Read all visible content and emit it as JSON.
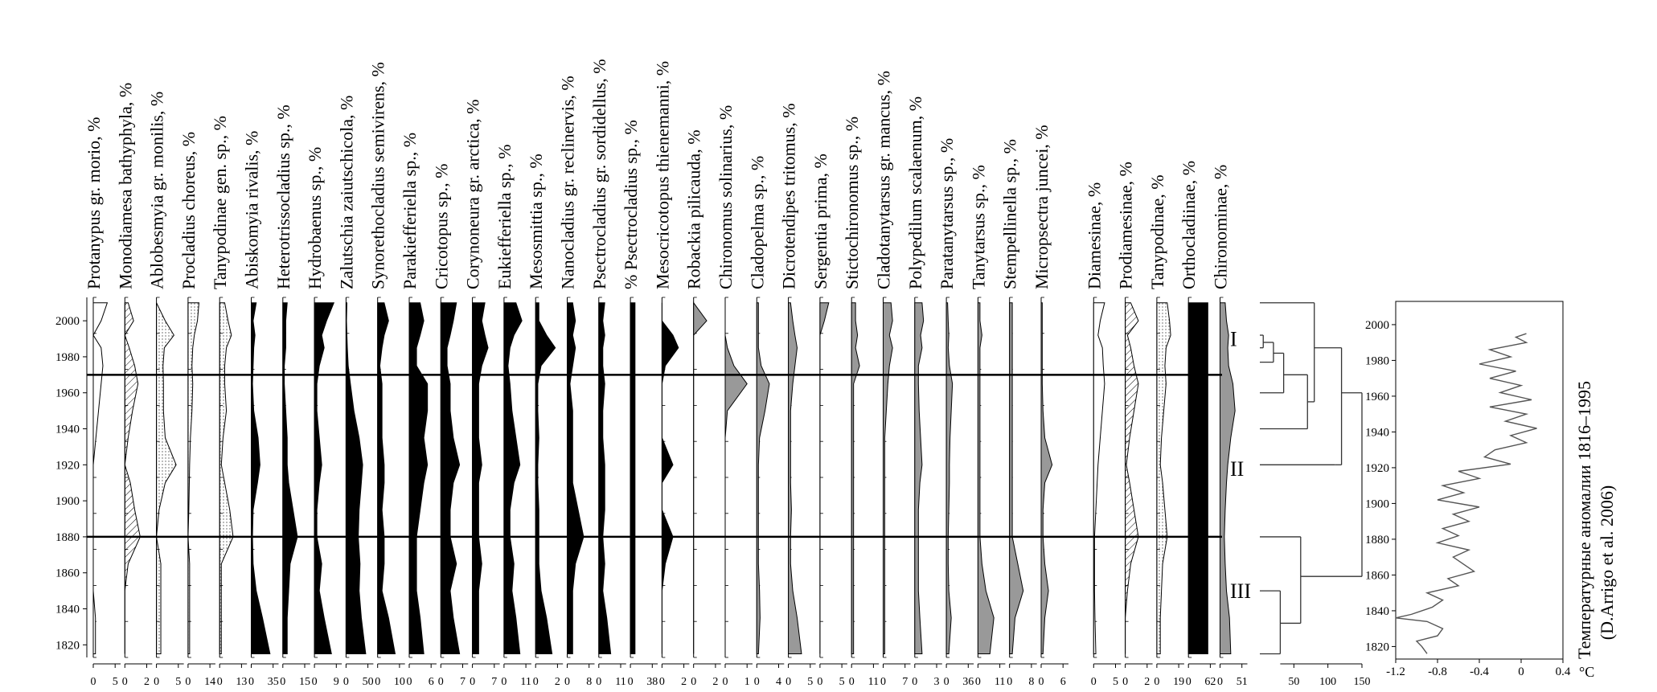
{
  "chart_data": {
    "type": "area",
    "description_y": "Years",
    "y_ticks": [
      "2000",
      "1980",
      "1960",
      "1940",
      "1920",
      "1900",
      "1880",
      "1860",
      "1840",
      "1820"
    ],
    "ylim": [
      1813,
      2013
    ],
    "zone_boundaries": [
      1970,
      1880
    ],
    "zone_labels": [
      {
        "label": "I",
        "year": 1990
      },
      {
        "label": "II",
        "year": 1918
      },
      {
        "label": "III",
        "year": 1850
      }
    ],
    "years": [
      1815,
      1835,
      1850,
      1865,
      1880,
      1895,
      1910,
      1920,
      1935,
      1950,
      1965,
      1975,
      1985,
      1992,
      2000,
      2010
    ],
    "taxa": [
      {
        "name": "Protanypus gr. morio, %",
        "ticks": [
          "0",
          "5"
        ],
        "max": 5,
        "fill": "#ffffff",
        "values": [
          0.5,
          0.5,
          0,
          0,
          0,
          0,
          0,
          0,
          0.6,
          1.2,
          1.8,
          2.2,
          1.8,
          0,
          1.8,
          3.2
        ]
      },
      {
        "name": "Monodiamesa bathyphyla, %",
        "ticks": [
          "0",
          "2"
        ],
        "max": 2,
        "fill": "hatch",
        "values": [
          0,
          0,
          0,
          0.3,
          1.4,
          0.9,
          0.5,
          0,
          0.3,
          0.7,
          1.2,
          0.9,
          0.4,
          0,
          0.8,
          0.3
        ]
      },
      {
        "name": "Ablobesmyia gr. monilis, %",
        "ticks": [
          "0",
          "5"
        ],
        "max": 5,
        "fill": "dots",
        "values": [
          1,
          1,
          1,
          1,
          0,
          0.6,
          2,
          4.5,
          2,
          1.6,
          1.6,
          1.5,
          1.8,
          4,
          2,
          0
        ]
      },
      {
        "name": "Procladius choreus, %",
        "ticks": [
          "0",
          "14"
        ],
        "max": 14,
        "fill": "dots",
        "values": [
          1,
          1,
          1,
          1,
          0,
          0.5,
          0.8,
          1,
          1.5,
          2.5,
          3,
          2.5,
          3,
          4,
          6,
          7
        ]
      },
      {
        "name": "Tanypodinae gen. sp., %",
        "ticks": [
          "0",
          "13"
        ],
        "max": 13,
        "fill": "dots",
        "values": [
          1,
          1,
          1,
          1,
          8,
          6,
          3,
          1,
          2,
          4,
          3,
          3,
          4,
          7,
          5,
          3
        ]
      },
      {
        "name": "Abiskomyia rivalis, %",
        "ticks": [
          "0",
          "35"
        ],
        "max": 35,
        "fill": "#000000",
        "values": [
          30,
          18,
          8,
          3,
          2,
          3,
          10,
          14,
          11,
          4,
          2,
          3,
          4,
          6,
          3,
          8
        ]
      },
      {
        "name": "Heterotrissocladius sp., %",
        "ticks": [
          "0",
          "15"
        ],
        "max": 15,
        "fill": "#000000",
        "values": [
          3,
          3,
          4,
          5,
          10,
          7,
          4,
          3,
          3,
          2,
          1,
          1,
          2,
          2,
          2,
          3
        ]
      },
      {
        "name": "Hydrobaenus sp., %",
        "ticks": [
          "0",
          "9"
        ],
        "max": 9,
        "fill": "#000000",
        "values": [
          7,
          4,
          2,
          3,
          1,
          1,
          2,
          3,
          2,
          1,
          1,
          2,
          4,
          3,
          5,
          8
        ]
      },
      {
        "name": "Zalutschia zaiutschicola, %",
        "ticks": [
          "0",
          "50"
        ],
        "max": 50,
        "fill": "#000000",
        "values": [
          45,
          35,
          30,
          32,
          28,
          30,
          35,
          38,
          30,
          18,
          10,
          5,
          3,
          2,
          1,
          2
        ]
      },
      {
        "name": "Synorethocladius semivirens, %",
        "ticks": [
          "0",
          "10"
        ],
        "max": 10,
        "fill": "#000000",
        "values": [
          8,
          5,
          2,
          3,
          3,
          2,
          3,
          3,
          2,
          2,
          2,
          1,
          2,
          3,
          5,
          3
        ]
      },
      {
        "name": "Parakiefferiella sp., %",
        "ticks": [
          "0",
          "6"
        ],
        "max": 6,
        "fill": "#000000",
        "values": [
          4,
          3,
          2,
          2,
          2,
          3,
          4,
          5,
          4,
          5,
          5,
          2,
          2,
          3,
          4,
          3
        ]
      },
      {
        "name": "Cricotopus sp., %",
        "ticks": [
          "0",
          "7"
        ],
        "max": 7,
        "fill": "#000000",
        "values": [
          6,
          4,
          3,
          5,
          3,
          3,
          4,
          6,
          4,
          3,
          3,
          2,
          2,
          3,
          4,
          5
        ]
      },
      {
        "name": "Corynoneura gr. arctica, %",
        "ticks": [
          "0",
          "7"
        ],
        "max": 7,
        "fill": "#000000",
        "values": [
          2,
          2,
          2,
          3,
          2,
          2,
          2,
          3,
          2,
          2,
          2,
          3,
          5,
          4,
          3,
          4
        ]
      },
      {
        "name": "Eukiefferiella sp., %",
        "ticks": [
          "0",
          "11"
        ],
        "max": 11,
        "fill": "#000000",
        "values": [
          8,
          6,
          4,
          5,
          3,
          3,
          5,
          8,
          6,
          4,
          3,
          2,
          3,
          5,
          9,
          6
        ]
      },
      {
        "name": "Mesosmittia sp., %",
        "ticks": [
          "0",
          "2"
        ],
        "max": 2,
        "fill": "#000000",
        "values": [
          1.5,
          1,
          0.5,
          0.3,
          0.3,
          0.3,
          0.2,
          0.2,
          0.3,
          0.2,
          0.2,
          0.5,
          1.8,
          1,
          0.3,
          0.3
        ]
      },
      {
        "name": "Nanocladius gr. reclinervis, %",
        "ticks": [
          "0",
          "8"
        ],
        "max": 8,
        "fill": "#000000",
        "values": [
          2,
          2,
          2,
          3,
          6,
          4,
          2,
          2,
          2,
          2,
          1,
          2,
          3,
          2,
          3,
          2
        ]
      },
      {
        "name": "Psectrocladius gr. sordidellus, %",
        "ticks": [
          "0",
          "11"
        ],
        "max": 11,
        "fill": "#000000",
        "values": [
          6,
          4,
          2,
          3,
          2,
          3,
          3,
          3,
          2,
          2,
          3,
          2,
          2,
          3,
          2,
          3
        ]
      },
      {
        "name": "% Psectrocladius sp., %",
        "ticks": [
          "0",
          "38"
        ],
        "max": 38,
        "fill": "#000000",
        "values": [
          8,
          8,
          8,
          8,
          8,
          8,
          8,
          8,
          8,
          8,
          8,
          8,
          8,
          8,
          8,
          8
        ]
      },
      {
        "name": "Mesocricotopus thienemanni, %",
        "ticks": [
          "0",
          "2"
        ],
        "max": 2,
        "fill": "#000000",
        "values": [
          0,
          0,
          0,
          0.3,
          1,
          0,
          0,
          1,
          0,
          0,
          0,
          0.3,
          1.5,
          1,
          0,
          0
        ]
      },
      {
        "name": "Robackia pilicauda, %",
        "ticks": [
          "0",
          "2"
        ],
        "max": 2,
        "fill": "#999999",
        "values": [
          0,
          0,
          0,
          0,
          0,
          0,
          0,
          0,
          0,
          0,
          0,
          0,
          0,
          0,
          1.2,
          0
        ]
      },
      {
        "name": "Chironomus solinarius, %",
        "ticks": [
          "0",
          "1"
        ],
        "max": 1,
        "fill": "#999999",
        "values": [
          0,
          0,
          0,
          0,
          0,
          0,
          0,
          0,
          0,
          0.1,
          1,
          0.4,
          0.1,
          0,
          0,
          0
        ]
      },
      {
        "name": "Cladopelma sp., %",
        "ticks": [
          "0",
          "4"
        ],
        "max": 4,
        "fill": "#999999",
        "values": [
          0.3,
          0.6,
          0.5,
          0.3,
          0.3,
          0.3,
          0.3,
          0.3,
          0.5,
          1.5,
          2.3,
          0.8,
          0.3,
          0.3,
          0.3,
          0.3
        ]
      },
      {
        "name": "Dicrotendipes tritomus, %",
        "ticks": [
          "0",
          "5"
        ],
        "max": 5,
        "fill": "#999999",
        "values": [
          3,
          2,
          1,
          0.5,
          0.5,
          0.7,
          0.5,
          0.5,
          0.5,
          0.5,
          1,
          1.5,
          2,
          1.5,
          1,
          0.5
        ]
      },
      {
        "name": "Sergentia prima, %",
        "ticks": [
          "0",
          "5"
        ],
        "max": 5,
        "fill": "#999999",
        "values": [
          0,
          0,
          0,
          0,
          0,
          0,
          0,
          0,
          0,
          0,
          0,
          0,
          0,
          0,
          1,
          2
        ]
      },
      {
        "name": "Stictochironomus sp., %",
        "ticks": [
          "0",
          "11"
        ],
        "max": 11,
        "fill": "#999999",
        "values": [
          1,
          1,
          1,
          1,
          1,
          1,
          1,
          1,
          1,
          1,
          1,
          4,
          2,
          3,
          2,
          2
        ]
      },
      {
        "name": "Cladotanytarsus gr. mancus, %",
        "ticks": [
          "0",
          "7"
        ],
        "max": 7,
        "fill": "#999999",
        "values": [
          0.5,
          0.5,
          0.5,
          0.5,
          0.5,
          0.5,
          0.5,
          0.5,
          0.5,
          1,
          1.5,
          2,
          3,
          2,
          3,
          2.5
        ]
      },
      {
        "name": "Polypedilum scalaenum, %",
        "ticks": [
          "0",
          "3"
        ],
        "max": 3,
        "fill": "#999999",
        "values": [
          1,
          0.7,
          0.5,
          0.5,
          0.5,
          0.5,
          0.7,
          1,
          0.8,
          0.6,
          0.5,
          0.5,
          1,
          0.8,
          1.2,
          1
        ]
      },
      {
        "name": "Paratanytarsus sp., %",
        "ticks": [
          "0",
          "36"
        ],
        "max": 36,
        "fill": "#999999",
        "values": [
          4,
          8,
          4,
          3,
          3,
          4,
          5,
          5,
          6,
          8,
          10,
          5,
          3,
          4,
          3,
          2
        ]
      },
      {
        "name": "Tanytarsus sp., %",
        "ticks": [
          "0",
          "11"
        ],
        "max": 11,
        "fill": "#999999",
        "values": [
          6,
          8,
          4,
          2,
          1,
          1,
          1,
          1,
          1,
          1,
          1,
          1,
          1,
          2,
          1,
          1
        ]
      },
      {
        "name": "Stempellinella sp., %",
        "ticks": [
          "0",
          "8"
        ],
        "max": 8,
        "fill": "#999999",
        "values": [
          1,
          2,
          5,
          3,
          1,
          1,
          1,
          1,
          1,
          1,
          1,
          1,
          1,
          1,
          1,
          1
        ]
      },
      {
        "name": "Micropsectra juncei, %",
        "ticks": [
          "0",
          "6"
        ],
        "max": 6,
        "fill": "#999999",
        "values": [
          0.5,
          1,
          2,
          1,
          0.5,
          0.5,
          1,
          3,
          1,
          0.5,
          0.3,
          0.3,
          0.3,
          0.3,
          0.3,
          0.3
        ]
      },
      {
        "name": "Diamesinae, %",
        "ticks": [
          "0",
          "5"
        ],
        "max": 5,
        "fill": "#ffffff",
        "values": [
          0.5,
          0.3,
          0.2,
          0.2,
          0.2,
          0.5,
          0.8,
          1,
          1.5,
          2,
          2.5,
          2.2,
          2,
          1,
          1.5,
          2.5
        ]
      },
      {
        "name": "Prodiamesinae, %",
        "ticks": [
          "0",
          "2"
        ],
        "max": 2,
        "fill": "hatch",
        "values": [
          0,
          0,
          0.2,
          0.5,
          1.2,
          0.8,
          0.4,
          0.1,
          0.4,
          0.8,
          1.2,
          0.8,
          0.5,
          0.2,
          1.2,
          0.5
        ]
      },
      {
        "name": "Tanypodinae, %",
        "ticks": [
          "0",
          "19"
        ],
        "max": 19,
        "fill": "dots",
        "values": [
          3,
          3,
          4,
          5,
          9,
          7,
          5,
          3,
          4,
          6,
          8,
          7,
          8,
          12,
          11,
          9
        ]
      },
      {
        "name": "Orthocladiinae, %",
        "ticks": [
          "0",
          "62"
        ],
        "max": 62,
        "fill": "#000000",
        "values": [
          55,
          55,
          55,
          55,
          55,
          55,
          55,
          55,
          55,
          55,
          55,
          55,
          55,
          55,
          55,
          55
        ]
      },
      {
        "name": "Chironominae, %",
        "ticks": [
          "0",
          "51"
        ],
        "max": 51,
        "fill": "#999999",
        "values": [
          25,
          22,
          15,
          12,
          10,
          12,
          15,
          18,
          25,
          35,
          30,
          20,
          18,
          20,
          15,
          12
        ]
      }
    ],
    "dendrogram": {
      "ticks": [
        "50",
        "100",
        "150"
      ],
      "xlim": [
        0,
        150
      ]
    },
    "temperature": {
      "title": "Температурные аномалии 1816–1995",
      "source": "(D.Arrigo et al. 2006)",
      "x_ticks": [
        "-1.2",
        "-0.8",
        "-0.4",
        "0",
        "0.4"
      ],
      "unit": "°C",
      "xlim": [
        -1.2,
        0.4
      ],
      "y_ticks": [
        "2000",
        "1980",
        "1960",
        "1940",
        "1920",
        "1900",
        "1880",
        "1860",
        "1840",
        "1820"
      ],
      "ylim": [
        1813,
        2013
      ],
      "series": [
        [
          1816,
          -0.9
        ],
        [
          1820,
          -0.95
        ],
        [
          1823,
          -1.0
        ],
        [
          1826,
          -0.8
        ],
        [
          1830,
          -0.75
        ],
        [
          1834,
          -0.9
        ],
        [
          1836,
          -1.2
        ],
        [
          1838,
          -1.05
        ],
        [
          1842,
          -0.85
        ],
        [
          1846,
          -0.75
        ],
        [
          1850,
          -0.9
        ],
        [
          1854,
          -0.6
        ],
        [
          1858,
          -0.7
        ],
        [
          1862,
          -0.45
        ],
        [
          1866,
          -0.55
        ],
        [
          1870,
          -0.65
        ],
        [
          1874,
          -0.5
        ],
        [
          1878,
          -0.8
        ],
        [
          1882,
          -0.6
        ],
        [
          1886,
          -0.75
        ],
        [
          1890,
          -0.5
        ],
        [
          1894,
          -0.65
        ],
        [
          1898,
          -0.4
        ],
        [
          1902,
          -0.8
        ],
        [
          1906,
          -0.55
        ],
        [
          1910,
          -0.75
        ],
        [
          1914,
          -0.4
        ],
        [
          1918,
          -0.6
        ],
        [
          1922,
          -0.1
        ],
        [
          1926,
          -0.35
        ],
        [
          1930,
          -0.25
        ],
        [
          1934,
          0.05
        ],
        [
          1938,
          -0.1
        ],
        [
          1942,
          0.15
        ],
        [
          1946,
          -0.15
        ],
        [
          1950,
          0.05
        ],
        [
          1954,
          -0.3
        ],
        [
          1958,
          0.1
        ],
        [
          1962,
          -0.2
        ],
        [
          1966,
          0.0
        ],
        [
          1970,
          -0.3
        ],
        [
          1974,
          -0.05
        ],
        [
          1978,
          -0.4
        ],
        [
          1982,
          -0.1
        ],
        [
          1986,
          -0.3
        ],
        [
          1990,
          0.05
        ],
        [
          1993,
          -0.05
        ],
        [
          1995,
          0.05
        ]
      ]
    }
  }
}
